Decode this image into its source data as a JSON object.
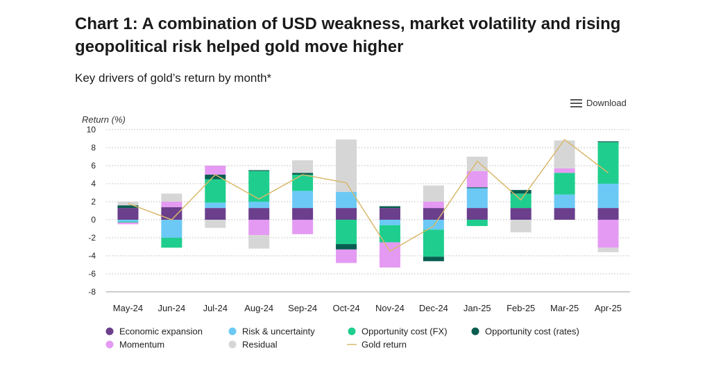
{
  "page": {
    "title": "Chart 1: A combination of USD weakness, market volatility and rising geopolitical risk helped gold move higher",
    "subtitle": "Key drivers of gold’s return by month*",
    "download_label": "Download",
    "download_icon": "menu-icon"
  },
  "chart_data": {
    "type": "bar",
    "stacked": true,
    "ylabel": "Return (%)",
    "xlabel": "",
    "ylim": [
      -8,
      10
    ],
    "yticks": [
      10,
      8,
      6,
      4,
      2,
      0,
      -2,
      -4,
      -6,
      -8
    ],
    "grid": true,
    "legend_position": "bottom",
    "categories": [
      "May-24",
      "Jun-24",
      "Jul-24",
      "Aug-24",
      "Sep-24",
      "Oct-24",
      "Nov-24",
      "Dec-24",
      "Jan-25",
      "Feb-25",
      "Mar-25",
      "Apr-25"
    ],
    "series": [
      {
        "name": "Economic expansion",
        "color": "#6b3f8c",
        "values": [
          1.3,
          1.4,
          1.3,
          1.3,
          1.3,
          1.3,
          1.3,
          1.3,
          1.3,
          1.3,
          1.3,
          1.3
        ]
      },
      {
        "name": "Risk & uncertainty",
        "color": "#6cc9f5",
        "values": [
          -0.2,
          -2.0,
          0.6,
          0.7,
          1.9,
          1.8,
          -0.6,
          -1.1,
          2.2,
          0.0,
          1.5,
          2.7
        ]
      },
      {
        "name": "Opportunity cost (FX)",
        "color": "#1fce8e",
        "values": [
          -0.1,
          -1.1,
          2.6,
          3.4,
          1.8,
          -2.7,
          -1.9,
          -3.0,
          -0.7,
          1.6,
          2.4,
          4.6
        ]
      },
      {
        "name": "Opportunity cost (rates)",
        "color": "#085e50",
        "values": [
          0.3,
          0.0,
          0.5,
          0.1,
          0.2,
          -0.6,
          0.2,
          -0.5,
          0.1,
          0.4,
          0.0,
          0.1
        ]
      },
      {
        "name": "Momentum",
        "color": "#e49af2",
        "values": [
          -0.2,
          0.6,
          1.0,
          -1.7,
          -1.6,
          -1.5,
          -2.8,
          0.7,
          1.8,
          0.0,
          0.5,
          -3.1
        ]
      },
      {
        "name": "Residual",
        "color": "#d6d6d6",
        "values": [
          0.4,
          0.9,
          -0.9,
          -1.5,
          1.4,
          5.8,
          0.0,
          1.8,
          1.6,
          -1.4,
          3.1,
          -0.5
        ]
      }
    ],
    "line": {
      "name": "Gold return",
      "color": "#d9b86a",
      "values": [
        1.8,
        0.0,
        5.0,
        2.3,
        5.0,
        4.1,
        -3.5,
        -0.7,
        6.5,
        2.2,
        8.9,
        5.2
      ]
    }
  }
}
